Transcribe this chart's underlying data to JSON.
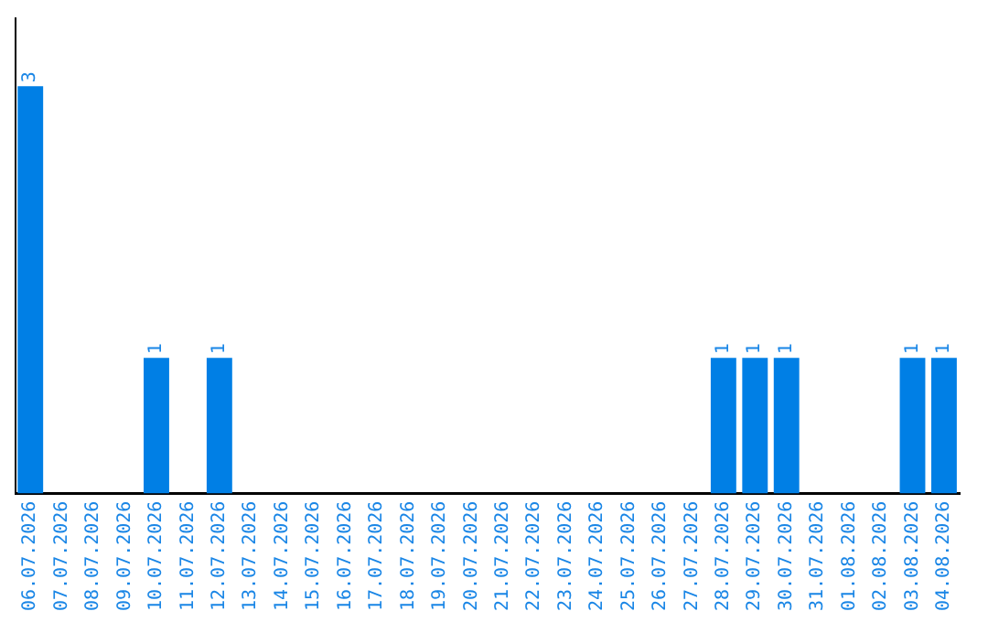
{
  "chart_data": {
    "type": "bar",
    "categories": [
      "06.07.2026",
      "07.07.2026",
      "08.07.2026",
      "09.07.2026",
      "10.07.2026",
      "11.07.2026",
      "12.07.2026",
      "13.07.2026",
      "14.07.2026",
      "15.07.2026",
      "16.07.2026",
      "17.07.2026",
      "18.07.2026",
      "19.07.2026",
      "20.07.2026",
      "21.07.2026",
      "22.07.2026",
      "23.07.2026",
      "24.07.2026",
      "25.07.2026",
      "26.07.2026",
      "27.07.2026",
      "28.07.2026",
      "29.07.2026",
      "30.07.2026",
      "31.07.2026",
      "01.08.2026",
      "02.08.2026",
      "03.08.2026",
      "04.08.2026"
    ],
    "values": [
      3,
      0,
      0,
      0,
      1,
      0,
      1,
      0,
      0,
      0,
      0,
      0,
      0,
      0,
      0,
      0,
      0,
      0,
      0,
      0,
      0,
      0,
      1,
      1,
      1,
      0,
      0,
      0,
      1,
      1
    ],
    "value_labels": [
      "3",
      null,
      null,
      null,
      "1",
      null,
      "1",
      null,
      null,
      null,
      null,
      null,
      null,
      null,
      null,
      null,
      null,
      null,
      null,
      null,
      null,
      null,
      "1",
      "1",
      "1",
      null,
      null,
      null,
      "1",
      "1"
    ],
    "color": "#007fe5",
    "grid": false,
    "legend": false,
    "tick_labels": "x"
  }
}
